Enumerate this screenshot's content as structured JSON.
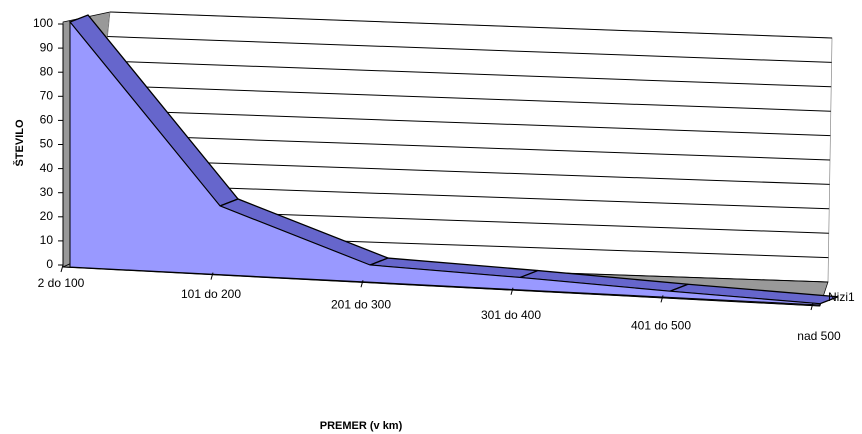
{
  "chart_data": {
    "type": "area",
    "x_label": "PREMER (v km)",
    "y_label": "ŠTEVILO",
    "categories": [
      "2 do 100",
      "101 do 200",
      "201 do 300",
      "301 do 400",
      "401 do 500",
      "nad 500"
    ],
    "series": [
      {
        "name": "Nizi1",
        "color": "#9999ff",
        "values": [
          100,
          28,
          7,
          5,
          2.5,
          0.5
        ]
      }
    ],
    "ylim": [
      0,
      100
    ],
    "yticks": [
      0,
      10,
      20,
      30,
      40,
      50,
      60,
      70,
      80,
      90,
      100
    ],
    "grid": true
  }
}
